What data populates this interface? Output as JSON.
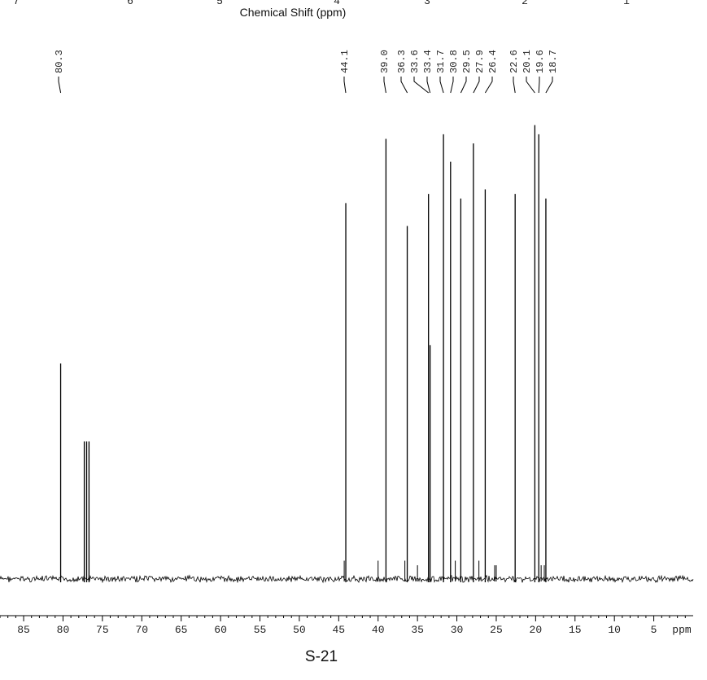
{
  "header": {
    "partial_axis_title": "Chemical Shift (ppm)",
    "partial_ticks": [
      "7",
      "6",
      "5",
      "4",
      "3",
      "2",
      "1"
    ]
  },
  "page_label": "S-21",
  "chart_data": {
    "type": "line",
    "xlabel": "ppm",
    "xlim": [
      88,
      0
    ],
    "x_ticks": [
      85,
      80,
      75,
      70,
      65,
      60,
      55,
      50,
      45,
      40,
      35,
      30,
      25,
      20,
      15,
      10,
      5
    ],
    "x_tick_labels": [
      "85",
      "80",
      "75",
      "70",
      "65",
      "60",
      "55",
      "50",
      "45",
      "40",
      "35",
      "30",
      "25",
      "20",
      "15",
      "10",
      "5"
    ],
    "minor_tick_step": 1,
    "peak_labels": [
      "80.3",
      "44.1",
      "39.0",
      "36.3",
      "33.6",
      "33.4",
      "31.7",
      "30.8",
      "29.5",
      "27.9",
      "26.4",
      "22.6",
      "20.1",
      "19.6",
      "18.7"
    ],
    "peaks": [
      {
        "ppm": 80.3,
        "height": 0.47
      },
      {
        "ppm": 77.3,
        "height": 0.3
      },
      {
        "ppm": 77.0,
        "height": 0.3
      },
      {
        "ppm": 76.7,
        "height": 0.3
      },
      {
        "ppm": 44.1,
        "height": 0.82
      },
      {
        "ppm": 39.0,
        "height": 0.96
      },
      {
        "ppm": 36.3,
        "height": 0.77
      },
      {
        "ppm": 33.6,
        "height": 0.84
      },
      {
        "ppm": 33.4,
        "height": 0.51
      },
      {
        "ppm": 31.7,
        "height": 0.97
      },
      {
        "ppm": 30.8,
        "height": 0.91
      },
      {
        "ppm": 29.5,
        "height": 0.83
      },
      {
        "ppm": 27.9,
        "height": 0.95
      },
      {
        "ppm": 26.4,
        "height": 0.85
      },
      {
        "ppm": 22.6,
        "height": 0.84
      },
      {
        "ppm": 20.1,
        "height": 0.99
      },
      {
        "ppm": 19.6,
        "height": 0.97
      },
      {
        "ppm": 18.7,
        "height": 0.83
      }
    ],
    "minor_peaks": [
      {
        "ppm": 44.3,
        "height": 0.04
      },
      {
        "ppm": 40.0,
        "height": 0.04
      },
      {
        "ppm": 36.6,
        "height": 0.04
      },
      {
        "ppm": 35.0,
        "height": 0.03
      },
      {
        "ppm": 30.2,
        "height": 0.04
      },
      {
        "ppm": 27.2,
        "height": 0.04
      },
      {
        "ppm": 25.2,
        "height": 0.03
      },
      {
        "ppm": 25.0,
        "height": 0.03
      },
      {
        "ppm": 19.3,
        "height": 0.03
      },
      {
        "ppm": 18.9,
        "height": 0.03
      }
    ]
  }
}
